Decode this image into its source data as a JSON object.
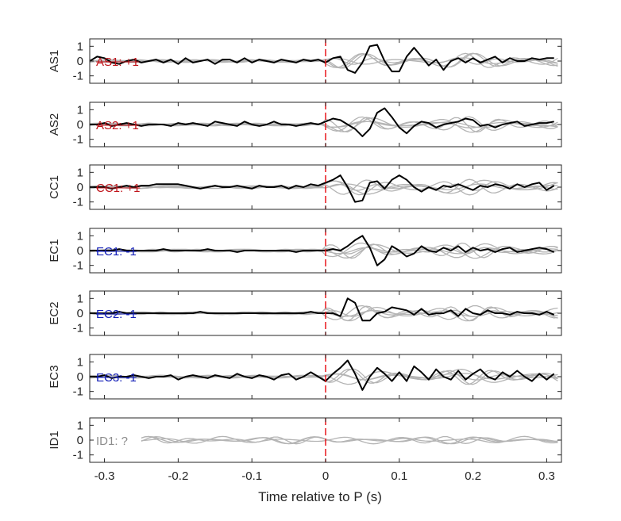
{
  "chart_data": {
    "type": "line",
    "xlabel": "Time relative to P (s)",
    "xlim": [
      -0.32,
      0.32
    ],
    "ylim": [
      -1.5,
      1.5
    ],
    "xticks": [
      "-0.3",
      "-0.2",
      "-0.1",
      "0",
      "0.1",
      "0.2",
      "0.3"
    ],
    "yticks": [
      "1",
      "0",
      "-1"
    ],
    "marker_time": 0,
    "colors": {
      "main": "#000000",
      "background": "#b4b4b4",
      "marker": "#e8161b",
      "positive": "#c0141a",
      "negative": "#1420b8",
      "unknown": "#8c8c8c"
    },
    "panels": [
      {
        "name": "AS1",
        "label": "AS1: +1",
        "polarity": "positive",
        "x": [
          -0.32,
          -0.31,
          -0.3,
          -0.29,
          -0.28,
          -0.27,
          -0.26,
          -0.25,
          -0.24,
          -0.23,
          -0.22,
          -0.21,
          -0.2,
          -0.19,
          -0.18,
          -0.17,
          -0.16,
          -0.15,
          -0.14,
          -0.13,
          -0.12,
          -0.11,
          -0.1,
          -0.09,
          -0.08,
          -0.07,
          -0.06,
          -0.05,
          -0.04,
          -0.03,
          -0.02,
          -0.01,
          0.0,
          0.01,
          0.02,
          0.03,
          0.04,
          0.05,
          0.06,
          0.07,
          0.08,
          0.09,
          0.1,
          0.11,
          0.12,
          0.13,
          0.14,
          0.15,
          0.16,
          0.17,
          0.18,
          0.19,
          0.2,
          0.21,
          0.22,
          0.23,
          0.24,
          0.25,
          0.26,
          0.27,
          0.28,
          0.29,
          0.3,
          0.31
        ],
        "y": [
          0.0,
          0.3,
          0.2,
          -0.1,
          -0.2,
          0.0,
          0.1,
          -0.1,
          0.0,
          0.1,
          -0.1,
          0.1,
          -0.2,
          0.2,
          -0.1,
          0.0,
          0.1,
          -0.2,
          0.1,
          0.1,
          -0.1,
          0.2,
          -0.1,
          0.1,
          0.0,
          -0.1,
          0.1,
          0.0,
          -0.1,
          0.1,
          0.0,
          0.1,
          -0.1,
          0.2,
          0.3,
          -0.6,
          -0.8,
          -0.1,
          1.0,
          1.1,
          0.0,
          -0.7,
          -0.7,
          0.3,
          0.9,
          0.3,
          -0.3,
          0.1,
          -0.6,
          0.0,
          0.2,
          -0.1,
          0.2,
          -0.1,
          0.1,
          0.3,
          -0.1,
          0.2,
          0.0,
          0.0,
          0.2,
          0.1,
          0.2,
          0.2
        ]
      },
      {
        "name": "AS2",
        "label": "AS2: +1",
        "polarity": "positive",
        "x": [
          -0.32,
          -0.31,
          -0.3,
          -0.29,
          -0.28,
          -0.27,
          -0.26,
          -0.25,
          -0.24,
          -0.23,
          -0.22,
          -0.21,
          -0.2,
          -0.19,
          -0.18,
          -0.17,
          -0.16,
          -0.15,
          -0.14,
          -0.13,
          -0.12,
          -0.11,
          -0.1,
          -0.09,
          -0.08,
          -0.07,
          -0.06,
          -0.05,
          -0.04,
          -0.03,
          -0.02,
          -0.01,
          0.0,
          0.01,
          0.02,
          0.03,
          0.04,
          0.05,
          0.06,
          0.07,
          0.08,
          0.09,
          0.1,
          0.11,
          0.12,
          0.13,
          0.14,
          0.15,
          0.16,
          0.17,
          0.18,
          0.19,
          0.2,
          0.21,
          0.22,
          0.23,
          0.24,
          0.25,
          0.26,
          0.27,
          0.28,
          0.29,
          0.3,
          0.31
        ],
        "y": [
          0.0,
          0.0,
          0.1,
          -0.1,
          0.0,
          0.1,
          0.0,
          -0.1,
          0.0,
          0.0,
          0.0,
          -0.1,
          0.1,
          0.0,
          0.1,
          0.0,
          -0.1,
          0.2,
          0.1,
          0.0,
          -0.1,
          0.2,
          0.0,
          -0.1,
          0.0,
          0.2,
          0.0,
          0.0,
          -0.1,
          0.0,
          0.1,
          0.0,
          0.2,
          0.4,
          0.3,
          0.0,
          -0.3,
          -0.8,
          -0.3,
          0.8,
          1.1,
          0.5,
          -0.2,
          -0.6,
          -0.1,
          0.2,
          0.1,
          -0.2,
          0.0,
          0.1,
          0.2,
          0.4,
          0.3,
          -0.1,
          0.0,
          -0.2,
          0.0,
          0.1,
          0.2,
          -0.1,
          0.0,
          0.1,
          0.1,
          0.2
        ]
      },
      {
        "name": "CC1",
        "label": "CC1: +1",
        "polarity": "positive",
        "x": [
          -0.32,
          -0.31,
          -0.3,
          -0.29,
          -0.28,
          -0.27,
          -0.26,
          -0.25,
          -0.24,
          -0.23,
          -0.22,
          -0.21,
          -0.2,
          -0.19,
          -0.18,
          -0.17,
          -0.16,
          -0.15,
          -0.14,
          -0.13,
          -0.12,
          -0.11,
          -0.1,
          -0.09,
          -0.08,
          -0.07,
          -0.06,
          -0.05,
          -0.04,
          -0.03,
          -0.02,
          -0.01,
          0.0,
          0.01,
          0.02,
          0.03,
          0.04,
          0.05,
          0.06,
          0.07,
          0.08,
          0.09,
          0.1,
          0.11,
          0.12,
          0.13,
          0.14,
          0.15,
          0.16,
          0.17,
          0.18,
          0.19,
          0.2,
          0.21,
          0.22,
          0.23,
          0.24,
          0.25,
          0.26,
          0.27,
          0.28,
          0.29,
          0.3,
          0.31
        ],
        "y": [
          0.0,
          0.0,
          0.0,
          -0.1,
          0.0,
          0.1,
          0.0,
          0.1,
          0.1,
          0.2,
          0.2,
          0.2,
          0.2,
          0.1,
          0.0,
          -0.1,
          0.0,
          0.1,
          0.0,
          0.0,
          0.1,
          0.0,
          -0.1,
          0.1,
          0.0,
          0.0,
          0.1,
          -0.1,
          0.1,
          0.0,
          0.2,
          0.1,
          0.3,
          0.5,
          0.8,
          0.0,
          -1.0,
          -0.9,
          0.3,
          0.4,
          -0.1,
          0.5,
          0.8,
          0.5,
          0.0,
          -0.3,
          0.0,
          -0.2,
          0.1,
          0.0,
          0.2,
          0.0,
          -0.2,
          0.1,
          0.0,
          0.2,
          0.1,
          -0.1,
          0.2,
          0.0,
          0.2,
          0.3,
          -0.2,
          0.1
        ]
      },
      {
        "name": "EC1",
        "label": "EC1: -1",
        "polarity": "negative",
        "x": [
          -0.32,
          -0.31,
          -0.3,
          -0.29,
          -0.28,
          -0.27,
          -0.26,
          -0.25,
          -0.24,
          -0.23,
          -0.22,
          -0.21,
          -0.2,
          -0.19,
          -0.18,
          -0.17,
          -0.16,
          -0.15,
          -0.14,
          -0.13,
          -0.12,
          -0.11,
          -0.1,
          -0.09,
          -0.08,
          -0.07,
          -0.06,
          -0.05,
          -0.04,
          -0.03,
          -0.02,
          -0.01,
          0.0,
          0.01,
          0.02,
          0.03,
          0.04,
          0.05,
          0.06,
          0.07,
          0.08,
          0.09,
          0.1,
          0.11,
          0.12,
          0.13,
          0.14,
          0.15,
          0.16,
          0.17,
          0.18,
          0.19,
          0.2,
          0.21,
          0.22,
          0.23,
          0.24,
          0.25,
          0.26,
          0.27,
          0.28,
          0.29,
          0.3,
          0.31
        ],
        "y": [
          0.0,
          0.0,
          0.0,
          0.0,
          0.1,
          0.0,
          0.0,
          0.0,
          0.0,
          0.0,
          0.1,
          0.0,
          0.0,
          0.0,
          0.0,
          0.0,
          0.1,
          0.0,
          0.0,
          0.0,
          -0.1,
          0.0,
          0.0,
          0.0,
          0.0,
          0.0,
          0.0,
          0.0,
          -0.1,
          0.0,
          0.0,
          0.0,
          0.0,
          0.1,
          0.0,
          0.3,
          0.7,
          1.0,
          0.2,
          -1.0,
          -0.6,
          0.3,
          0.0,
          -0.4,
          -0.2,
          0.3,
          0.0,
          -0.1,
          0.2,
          0.0,
          0.3,
          -0.1,
          0.2,
          0.0,
          0.1,
          -0.1,
          0.1,
          0.2,
          -0.1,
          0.0,
          0.1,
          0.2,
          0.1,
          -0.1
        ]
      },
      {
        "name": "EC2",
        "label": "EC2: -1",
        "polarity": "negative",
        "x": [
          -0.32,
          -0.31,
          -0.3,
          -0.29,
          -0.28,
          -0.27,
          -0.26,
          -0.25,
          -0.24,
          -0.23,
          -0.22,
          -0.21,
          -0.2,
          -0.19,
          -0.18,
          -0.17,
          -0.16,
          -0.15,
          -0.14,
          -0.13,
          -0.12,
          -0.11,
          -0.1,
          -0.09,
          -0.08,
          -0.07,
          -0.06,
          -0.05,
          -0.04,
          -0.03,
          -0.02,
          -0.01,
          0.0,
          0.01,
          0.02,
          0.03,
          0.04,
          0.05,
          0.06,
          0.07,
          0.08,
          0.09,
          0.1,
          0.11,
          0.12,
          0.13,
          0.14,
          0.15,
          0.16,
          0.17,
          0.18,
          0.19,
          0.2,
          0.21,
          0.22,
          0.23,
          0.24,
          0.25,
          0.26,
          0.27,
          0.28,
          0.29,
          0.3,
          0.31
        ],
        "y": [
          0.0,
          0.0,
          0.0,
          0.0,
          0.1,
          0.0,
          0.0,
          0.0,
          0.0,
          0.0,
          0.0,
          0.0,
          0.0,
          0.0,
          0.0,
          0.1,
          0.0,
          0.0,
          0.0,
          0.0,
          0.0,
          0.0,
          0.0,
          0.0,
          0.0,
          0.0,
          0.0,
          0.0,
          0.0,
          0.0,
          0.1,
          0.0,
          0.0,
          0.0,
          -0.2,
          1.0,
          0.7,
          -0.5,
          -0.5,
          0.0,
          0.1,
          0.4,
          0.3,
          0.2,
          -0.1,
          0.3,
          -0.1,
          0.0,
          0.0,
          0.2,
          -0.2,
          0.3,
          0.0,
          -0.1,
          0.2,
          0.0,
          0.0,
          -0.1,
          0.1,
          0.0,
          0.0,
          -0.1,
          0.1,
          -0.1
        ]
      },
      {
        "name": "EC3",
        "label": "EC3: -1",
        "polarity": "negative",
        "x": [
          -0.32,
          -0.31,
          -0.3,
          -0.29,
          -0.28,
          -0.27,
          -0.26,
          -0.25,
          -0.24,
          -0.23,
          -0.22,
          -0.21,
          -0.2,
          -0.19,
          -0.18,
          -0.17,
          -0.16,
          -0.15,
          -0.14,
          -0.13,
          -0.12,
          -0.11,
          -0.1,
          -0.09,
          -0.08,
          -0.07,
          -0.06,
          -0.05,
          -0.04,
          -0.03,
          -0.02,
          -0.01,
          0.0,
          0.01,
          0.02,
          0.03,
          0.04,
          0.05,
          0.06,
          0.07,
          0.08,
          0.09,
          0.1,
          0.11,
          0.12,
          0.13,
          0.14,
          0.15,
          0.16,
          0.17,
          0.18,
          0.19,
          0.2,
          0.21,
          0.22,
          0.23,
          0.24,
          0.25,
          0.26,
          0.27,
          0.28,
          0.29,
          0.3,
          0.31
        ],
        "y": [
          0.0,
          0.0,
          0.1,
          -0.1,
          0.0,
          0.0,
          0.1,
          0.0,
          -0.1,
          0.0,
          0.0,
          0.1,
          -0.2,
          0.0,
          0.1,
          0.0,
          -0.1,
          0.1,
          0.0,
          -0.1,
          0.2,
          0.0,
          -0.1,
          0.1,
          0.0,
          -0.2,
          0.1,
          0.2,
          -0.2,
          0.0,
          0.3,
          0.0,
          -0.3,
          0.2,
          0.6,
          1.1,
          0.2,
          -0.9,
          0.0,
          0.6,
          0.2,
          -0.3,
          0.3,
          -0.3,
          0.7,
          0.3,
          -0.2,
          0.5,
          0.0,
          -0.2,
          0.4,
          -0.2,
          0.2,
          0.5,
          0.0,
          -0.2,
          0.3,
          0.0,
          0.4,
          0.0,
          -0.3,
          0.2,
          -0.2,
          0.2
        ]
      },
      {
        "name": "ID1",
        "label": "ID1: ?",
        "polarity": "unknown",
        "x": [],
        "y": []
      }
    ]
  }
}
